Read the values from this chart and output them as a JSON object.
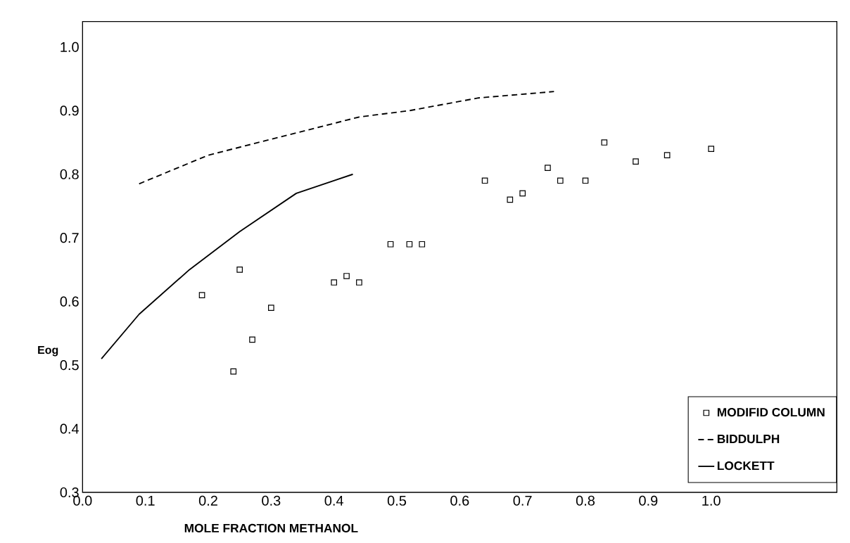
{
  "chart_data": {
    "type": "scatter",
    "xlabel": "MOLE FRACTION METHANOL",
    "ylabel": "Eog",
    "xlim": [
      0,
      1.2
    ],
    "ylim": [
      0.3,
      1.04
    ],
    "xticks": [
      {
        "value": 0,
        "label": "0.0"
      },
      {
        "value": 0.1,
        "label": "0.1"
      },
      {
        "value": 0.2,
        "label": "0.2"
      },
      {
        "value": 0.3,
        "label": "0.3"
      },
      {
        "value": 0.4,
        "label": "0.4"
      },
      {
        "value": 0.5,
        "label": "0.5"
      },
      {
        "value": 0.6,
        "label": "0.6"
      },
      {
        "value": 0.7,
        "label": "0.7"
      },
      {
        "value": 0.8,
        "label": "0.8"
      },
      {
        "value": 0.9,
        "label": "0.9"
      },
      {
        "value": 1.0,
        "label": "1.0"
      }
    ],
    "yticks": [
      {
        "value": 0.3,
        "label": "0.3"
      },
      {
        "value": 0.4,
        "label": "0.4"
      },
      {
        "value": 0.5,
        "label": "0.5"
      },
      {
        "value": 0.6,
        "label": "0.6"
      },
      {
        "value": 0.7,
        "label": "0.7"
      },
      {
        "value": 0.8,
        "label": "0.8"
      },
      {
        "value": 0.9,
        "label": "0.9"
      },
      {
        "value": 1.0,
        "label": "1.0"
      }
    ],
    "legend": "bottom right",
    "series": [
      {
        "name": "MODIFID COLUMN",
        "marker": "square",
        "color": "#000000",
        "x": [
          0.19,
          0.25,
          0.3,
          0.27,
          0.24,
          0.4,
          0.42,
          0.44,
          0.49,
          0.52,
          0.54,
          0.64,
          0.68,
          0.7,
          0.74,
          0.76,
          0.8,
          0.83,
          0.88,
          0.93,
          1.0
        ],
        "values": [
          0.61,
          0.65,
          0.59,
          0.54,
          0.49,
          0.63,
          0.64,
          0.63,
          0.69,
          0.69,
          0.69,
          0.79,
          0.76,
          0.77,
          0.81,
          0.79,
          0.79,
          0.85,
          0.82,
          0.83,
          0.84
        ]
      },
      {
        "name": "BIDDULPH",
        "type": "line",
        "line_style": "dashed",
        "color": "#000000",
        "x": [
          0.09,
          0.2,
          0.34,
          0.44,
          0.52,
          0.63,
          0.75
        ],
        "values": [
          0.785,
          0.83,
          0.865,
          0.89,
          0.9,
          0.92,
          0.93
        ]
      },
      {
        "name": "LOCKETT",
        "type": "line",
        "line_style": "solid",
        "color": "#000000",
        "x": [
          0.03,
          0.09,
          0.17,
          0.25,
          0.34,
          0.43
        ],
        "values": [
          0.51,
          0.58,
          0.65,
          0.71,
          0.77,
          0.8
        ]
      }
    ]
  }
}
